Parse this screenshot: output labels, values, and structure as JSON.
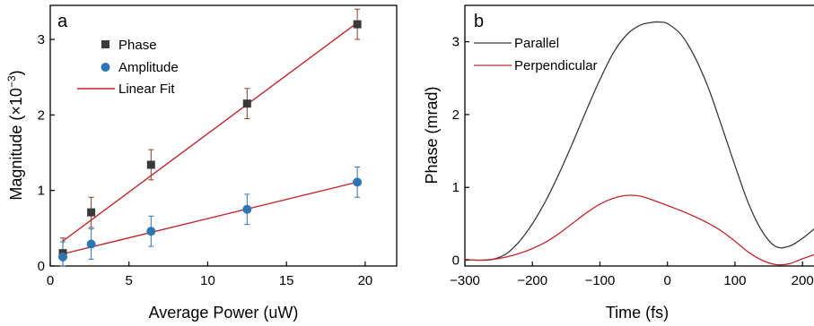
{
  "chart_data": [
    {
      "type": "scatter",
      "panel_label": "a",
      "xlabel": "Average Power (uW)",
      "ylabel_main": "Magnitude (×10",
      "ylabel_exp": "−3",
      "ylabel_close": ")",
      "xlim": [
        0,
        22
      ],
      "ylim": [
        0,
        3.45
      ],
      "xticks": [
        0,
        5,
        10,
        15,
        20
      ],
      "yticks": [
        0,
        1,
        2,
        3
      ],
      "xtick_labels": [
        "0",
        "5",
        "10",
        "15",
        "20"
      ],
      "ytick_labels": [
        "0",
        "1",
        "2",
        "3"
      ],
      "legend_position": "top-left",
      "series": [
        {
          "name": "Phase",
          "marker": "square",
          "color": "#3a3a3a",
          "errcolor": "#8b3a2a",
          "x": [
            0.8,
            2.6,
            6.4,
            12.5,
            19.5
          ],
          "y": [
            0.17,
            0.71,
            1.34,
            2.15,
            3.2
          ],
          "err": [
            0.2,
            0.2,
            0.2,
            0.2,
            0.2
          ]
        },
        {
          "name": "Amplitude",
          "marker": "circle",
          "color": "#2e75b6",
          "errcolor": "#2e75b6",
          "x": [
            0.8,
            2.6,
            6.4,
            12.5,
            19.5
          ],
          "y": [
            0.12,
            0.29,
            0.46,
            0.75,
            1.11
          ],
          "err": [
            0.2,
            0.2,
            0.2,
            0.2,
            0.2
          ]
        }
      ],
      "fit": {
        "name": "Linear Fit",
        "color": "#c0272d",
        "lines": [
          {
            "x": [
              0.8,
              19.5
            ],
            "y": [
              0.33,
              3.22
            ]
          },
          {
            "x": [
              0.8,
              19.5
            ],
            "y": [
              0.16,
              1.11
            ]
          }
        ]
      }
    },
    {
      "type": "line",
      "panel_label": "b",
      "xlabel": "Time (fs)",
      "ylabel": "Phase (mrad)",
      "xlim": [
        -300,
        225
      ],
      "ylim": [
        -0.08,
        3.5
      ],
      "xticks": [
        -300,
        -200,
        -100,
        0,
        100,
        200
      ],
      "yticks": [
        0,
        1,
        2,
        3
      ],
      "xtick_labels": [
        "−300",
        "−200",
        "−100",
        "0",
        "100",
        "200"
      ],
      "ytick_labels": [
        "0",
        "1",
        "2",
        "3"
      ],
      "legend_position": "top-left",
      "series": [
        {
          "name": "Parallel",
          "color": "#3a3a3a",
          "x": [
            -300,
            -280,
            -260,
            -240,
            -220,
            -200,
            -180,
            -160,
            -140,
            -120,
            -100,
            -80,
            -60,
            -40,
            -20,
            -10,
            0,
            20,
            40,
            60,
            80,
            100,
            120,
            140,
            160,
            180,
            200,
            225
          ],
          "y": [
            0.01,
            0.0,
            0.01,
            0.08,
            0.25,
            0.5,
            0.82,
            1.2,
            1.62,
            2.06,
            2.48,
            2.85,
            3.1,
            3.23,
            3.27,
            3.27,
            3.25,
            3.1,
            2.8,
            2.38,
            1.85,
            1.3,
            0.78,
            0.4,
            0.19,
            0.19,
            0.3,
            0.49
          ]
        },
        {
          "name": "Perpendicular",
          "color": "#c0272d",
          "x": [
            -300,
            -280,
            -260,
            -240,
            -220,
            -200,
            -180,
            -160,
            -140,
            -120,
            -100,
            -80,
            -60,
            -40,
            -20,
            0,
            20,
            40,
            60,
            80,
            100,
            120,
            140,
            160,
            180,
            200,
            225
          ],
          "y": [
            0.01,
            0.0,
            0.01,
            0.04,
            0.09,
            0.16,
            0.25,
            0.37,
            0.51,
            0.65,
            0.77,
            0.85,
            0.89,
            0.88,
            0.82,
            0.75,
            0.68,
            0.6,
            0.51,
            0.4,
            0.26,
            0.11,
            0.0,
            -0.06,
            -0.05,
            0.02,
            0.1
          ]
        }
      ]
    }
  ]
}
